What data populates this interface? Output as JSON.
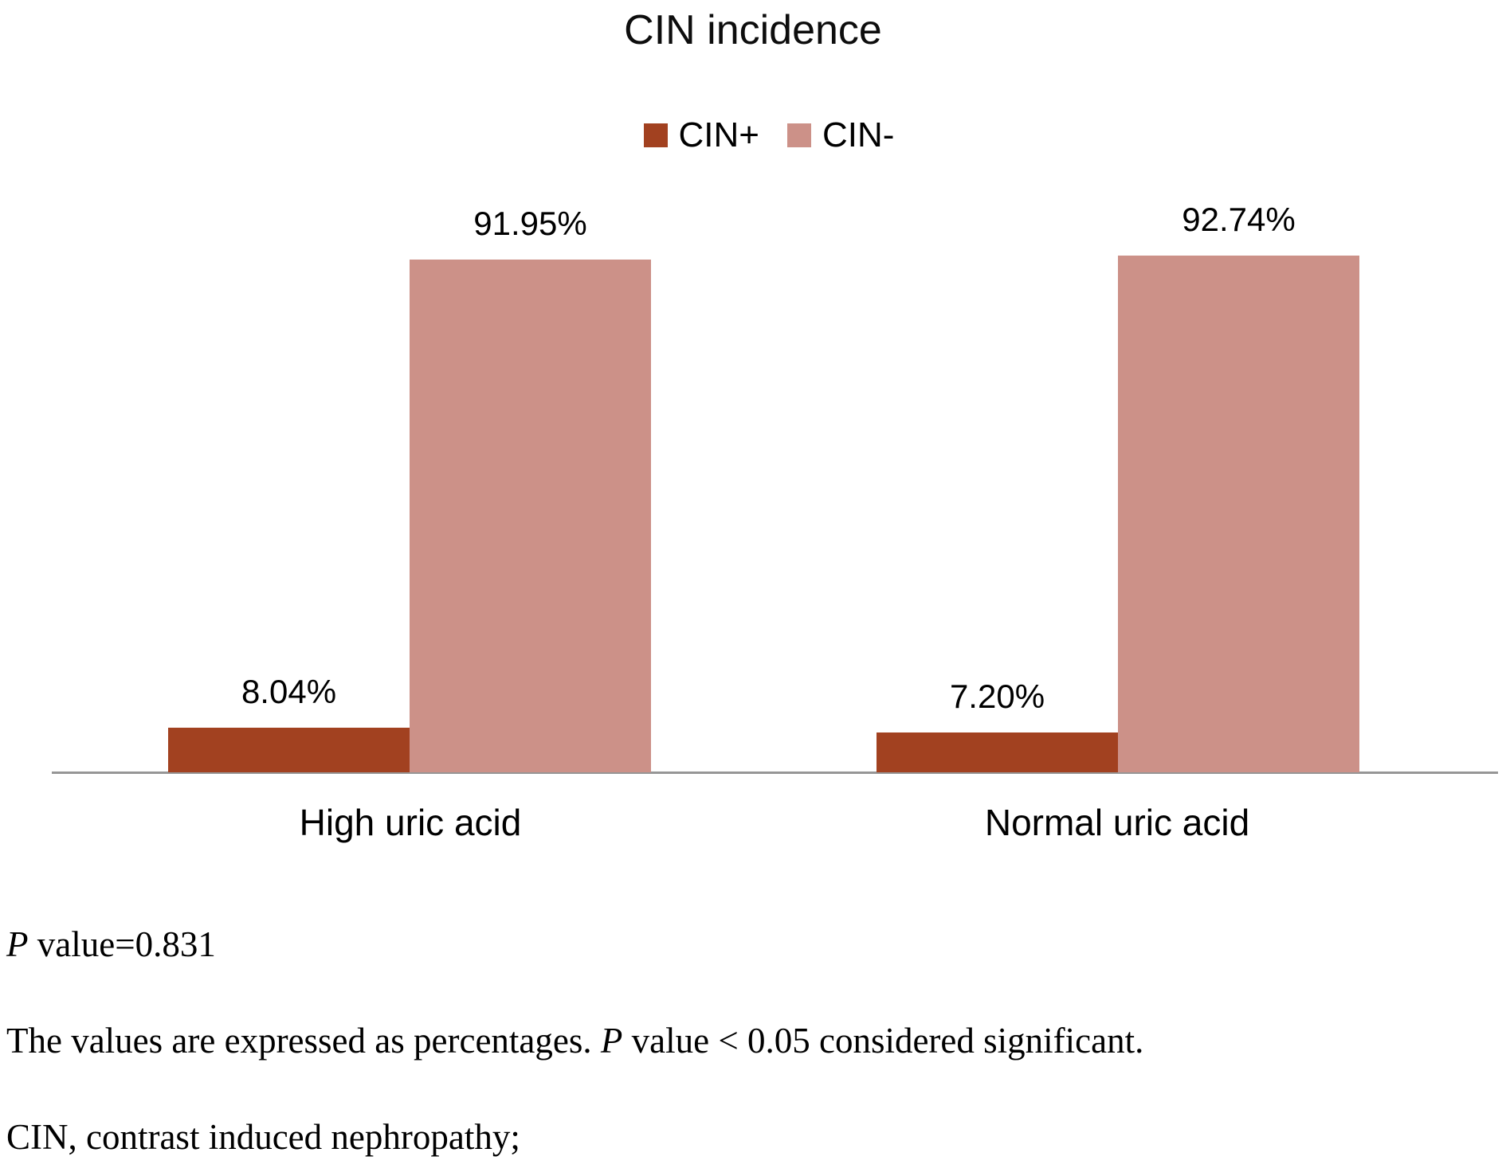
{
  "chart_data": {
    "type": "bar",
    "title": "CIN incidence",
    "xlabel": "",
    "ylabel": "",
    "ylim": [
      0,
      100
    ],
    "grid": false,
    "legend_position": "top-center",
    "categories": [
      "High uric acid",
      "Normal uric acid"
    ],
    "series": [
      {
        "name": "CIN+",
        "color": "#A24120",
        "values": [
          8.04,
          7.2
        ],
        "value_labels": [
          "8.04%",
          "7.20%"
        ]
      },
      {
        "name": "CIN-",
        "color": "#CC9188",
        "values": [
          91.95,
          92.74
        ],
        "value_labels": [
          "91.95%",
          "92.74%"
        ]
      }
    ],
    "axis_line_color": "#969696",
    "background_color": "#ffffff"
  },
  "footer": {
    "lines": [
      {
        "pre": "",
        "italic": "P",
        "post": " value=0.831"
      },
      {
        "pre": "The values are expressed as percentages. ",
        "italic": "P",
        "post": " value < 0.05 considered significant."
      },
      {
        "pre": "CIN, contrast induced nephropathy;",
        "italic": "",
        "post": ""
      }
    ]
  }
}
